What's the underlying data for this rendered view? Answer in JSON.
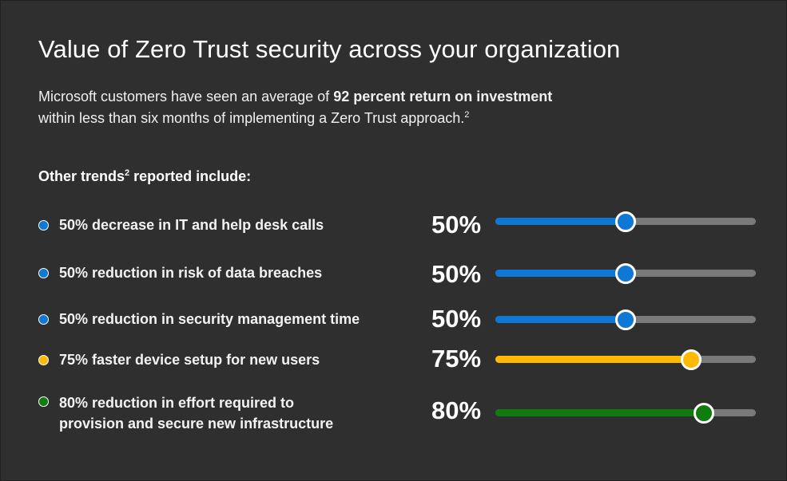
{
  "header": {
    "title": "Value of Zero Trust security across your organization",
    "intro_prefix": "Microsoft customers have seen an average of ",
    "intro_bold": "92 percent return on investment",
    "intro_suffix": "within less than six months of implementing a Zero Trust approach.",
    "intro_sup": "2"
  },
  "trends": {
    "heading_prefix": "Other trends",
    "heading_sup": "2",
    "heading_suffix": " reported include:",
    "items": [
      {
        "label": "50% decrease in IT and help desk calls",
        "pct_label": "50%",
        "value": 50,
        "color": "#0f78d4"
      },
      {
        "label": "50% reduction in risk of data breaches",
        "pct_label": "50%",
        "value": 50,
        "color": "#0f78d4"
      },
      {
        "label": "50% reduction in security management time",
        "pct_label": "50%",
        "value": 50,
        "color": "#0f78d4"
      },
      {
        "label": "75% faster device setup for new users",
        "pct_label": "75%",
        "value": 75,
        "color": "#ffb900"
      },
      {
        "label": "80% reduction in effort required to provision and secure new infrastructure",
        "pct_label": "80%",
        "value": 80,
        "color": "#107c10"
      }
    ]
  },
  "colors": {
    "background": "#2f2f2f",
    "track": "#7a7a7a"
  }
}
